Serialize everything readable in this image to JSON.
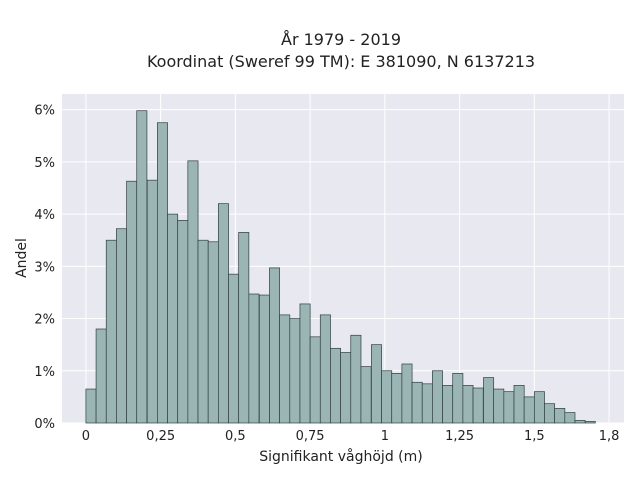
{
  "chart_data": {
    "type": "bar",
    "title": "År 1979 - 2019",
    "subtitle": "Koordinat (Sweref 99 TM): E 381090, N 6137213",
    "xlabel": "Signifikant våghöjd (m)",
    "ylabel": "Andel",
    "xlim": [
      -0.08,
      1.8
    ],
    "ylim": [
      0,
      6.3
    ],
    "x_ticks": [
      0,
      0.25,
      0.5,
      0.75,
      1,
      1.25,
      1.5,
      1.75
    ],
    "x_tick_labels": [
      "0",
      "0,25",
      "0,5",
      "0,75",
      "1",
      "1,25",
      "1,5",
      "1,8"
    ],
    "y_ticks": [
      0,
      1,
      2,
      3,
      4,
      5,
      6
    ],
    "y_tick_labels": [
      "0%",
      "1%",
      "2%",
      "3%",
      "4%",
      "5%",
      "6%"
    ],
    "grid": true,
    "bin_width": 0.0341,
    "bin_starts": [
      0,
      0.034,
      0.068,
      0.102,
      0.136,
      0.17,
      0.205,
      0.239,
      0.273,
      0.307,
      0.341,
      0.375,
      0.409,
      0.443,
      0.477,
      0.511,
      0.545,
      0.58,
      0.614,
      0.648,
      0.682,
      0.716,
      0.75,
      0.784,
      0.818,
      0.852,
      0.886,
      0.92,
      0.955,
      0.989,
      1.023,
      1.057,
      1.091,
      1.125,
      1.159,
      1.193,
      1.227,
      1.261,
      1.295,
      1.33,
      1.364,
      1.398,
      1.432,
      1.466,
      1.5,
      1.534,
      1.568,
      1.602,
      1.636,
      1.67
    ],
    "values": [
      0.65,
      1.8,
      3.5,
      3.72,
      4.63,
      5.98,
      4.65,
      5.75,
      4.0,
      3.88,
      5.02,
      3.5,
      3.47,
      4.2,
      2.85,
      3.65,
      2.47,
      2.45,
      2.97,
      2.07,
      2.0,
      2.28,
      1.65,
      2.07,
      1.43,
      1.35,
      1.68,
      1.08,
      1.5,
      1.0,
      0.95,
      1.13,
      0.78,
      0.75,
      1.0,
      0.72,
      0.95,
      0.72,
      0.67,
      0.87,
      0.65,
      0.6,
      0.72,
      0.5,
      0.6,
      0.37,
      0.28,
      0.2,
      0.05,
      0.03
    ],
    "colors": {
      "bar_fill": "#9bb5b5",
      "bar_stroke": "#2f3f3f",
      "plot_bg": "#e8e8f0",
      "grid": "#ffffff"
    }
  }
}
